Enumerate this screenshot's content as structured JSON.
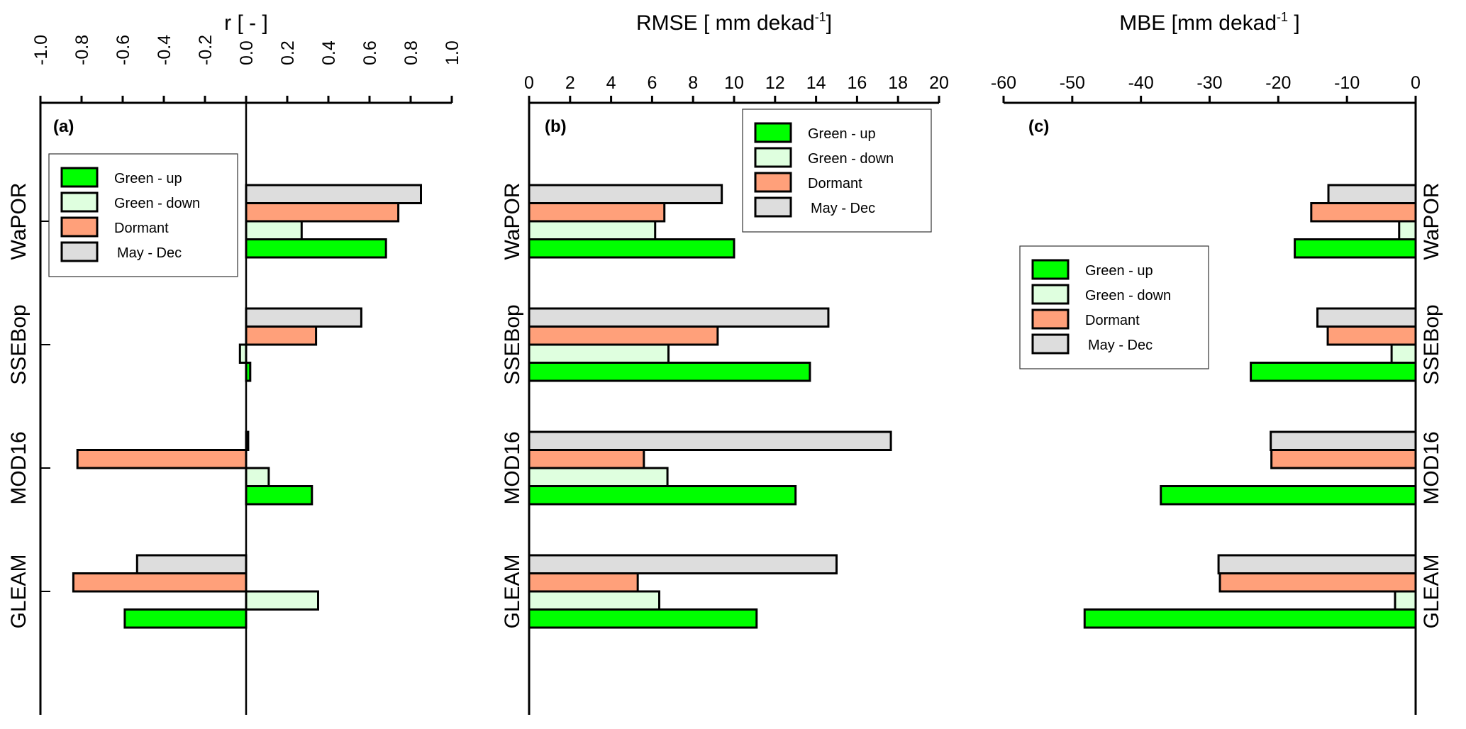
{
  "colors": {
    "Green - up": "#00ff00",
    "Green - down": "#dfffdf",
    "Dormant": "#ffa07a",
    "May - Dec": "#dddddd"
  },
  "chart_data": [
    {
      "type": "bar",
      "orientation": "horizontal",
      "panel_label": "(a)",
      "title": "r [ - ]",
      "title_sup": "",
      "title_end": "",
      "xlim": [
        -1.0,
        1.0
      ],
      "ticks": [
        -1.0,
        -0.8,
        -0.6,
        -0.4,
        -0.2,
        0.0,
        0.2,
        0.4,
        0.6,
        0.8,
        1.0
      ],
      "tick_labels": [
        "-1.0",
        "-0.8",
        "-0.6",
        "-0.4",
        "-0.2",
        "0.0",
        "0.2",
        "0.4",
        "0.6",
        "0.8",
        "1.0"
      ],
      "tick_rotated": true,
      "category_side": "left",
      "legend_position": "top-left",
      "categories": [
        "WaPOR",
        "SSEBop",
        "MOD16",
        "GLEAM"
      ],
      "series": [
        {
          "name": "Green - up",
          "values": [
            0.68,
            0.02,
            0.32,
            -0.59
          ]
        },
        {
          "name": "Green - down",
          "values": [
            0.27,
            -0.03,
            0.11,
            0.35
          ]
        },
        {
          "name": "Dormant",
          "values": [
            0.74,
            0.34,
            -0.82,
            -0.84
          ]
        },
        {
          "name": "May - Dec",
          "values": [
            0.85,
            0.56,
            0.01,
            -0.53
          ]
        }
      ]
    },
    {
      "type": "bar",
      "orientation": "horizontal",
      "panel_label": "(b)",
      "title": "RMSE [ mm dekad",
      "title_sup": "-1",
      "title_end": "]",
      "xlim": [
        0,
        20
      ],
      "ticks": [
        0,
        2,
        4,
        6,
        8,
        10,
        12,
        14,
        16,
        18,
        20
      ],
      "tick_labels": [
        "0",
        "2",
        "4",
        "6",
        "8",
        "10",
        "12",
        "14",
        "16",
        "18",
        "20"
      ],
      "tick_rotated": false,
      "category_side": "left",
      "legend_position": "top-right",
      "categories": [
        "WaPOR",
        "SSEBop",
        "MOD16",
        "GLEAM"
      ],
      "series": [
        {
          "name": "Green - up",
          "values": [
            10.0,
            13.7,
            13.0,
            11.1
          ]
        },
        {
          "name": "Green - down",
          "values": [
            6.15,
            6.8,
            6.75,
            6.35
          ]
        },
        {
          "name": "Dormant",
          "values": [
            6.6,
            9.2,
            5.6,
            5.3
          ]
        },
        {
          "name": "May - Dec",
          "values": [
            9.4,
            14.6,
            17.65,
            15.0
          ]
        }
      ]
    },
    {
      "type": "bar",
      "orientation": "horizontal",
      "panel_label": "(c)",
      "title": "MBE [mm dekad",
      "title_sup": "-1",
      "title_end": " ]",
      "xlim": [
        -60,
        0
      ],
      "ticks": [
        -60,
        -50,
        -40,
        -30,
        -20,
        -10,
        0
      ],
      "tick_labels": [
        "-60",
        "-50",
        "-40",
        "-30",
        "-20",
        "-10",
        "0"
      ],
      "tick_rotated": false,
      "category_side": "right",
      "legend_position": "middle-left",
      "categories": [
        "WaPOR",
        "SSEBop",
        "MOD16",
        "GLEAM"
      ],
      "series": [
        {
          "name": "Green - up",
          "values": [
            -17.6,
            -24.0,
            -37.1,
            -48.2
          ]
        },
        {
          "name": "Green - down",
          "values": [
            -2.4,
            -3.5,
            0,
            -3.0
          ]
        },
        {
          "name": "Dormant",
          "values": [
            -15.2,
            -12.8,
            -21.0,
            -28.5
          ]
        },
        {
          "name": "May - Dec",
          "values": [
            -12.7,
            -14.3,
            -21.1,
            -28.7
          ]
        }
      ]
    }
  ]
}
